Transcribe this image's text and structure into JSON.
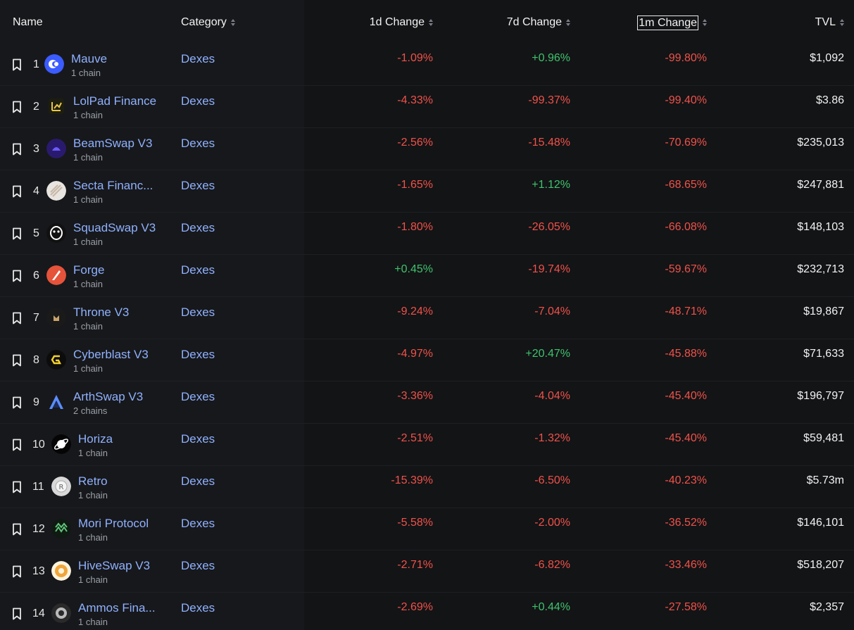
{
  "header": {
    "name": "Name",
    "category": "Category",
    "change_1d": "1d Change",
    "change_7d": "7d Change",
    "change_1m": "1m Change",
    "tvl": "TVL"
  },
  "colors": {
    "negative": "#f0524a",
    "positive": "#3fc36e",
    "link": "#8fb1ff"
  },
  "rows": [
    {
      "rank": "1",
      "name": "Mauve",
      "chains": "1 chain",
      "category": "Dexes",
      "d1": "-1.09%",
      "d7": "+0.96%",
      "m1": "-99.80%",
      "tvl": "$1,092",
      "logo": "mauve-logo-icon"
    },
    {
      "rank": "2",
      "name": "LolPad Finance",
      "chains": "1 chain",
      "category": "Dexes",
      "d1": "-4.33%",
      "d7": "-99.37%",
      "m1": "-99.40%",
      "tvl": "$3.86",
      "logo": "lolpad-logo-icon"
    },
    {
      "rank": "3",
      "name": "BeamSwap V3",
      "chains": "1 chain",
      "category": "Dexes",
      "d1": "-2.56%",
      "d7": "-15.48%",
      "m1": "-70.69%",
      "tvl": "$235,013",
      "logo": "beamswap-logo-icon"
    },
    {
      "rank": "4",
      "name": "Secta Financ...",
      "chains": "1 chain",
      "category": "Dexes",
      "d1": "-1.65%",
      "d7": "+1.12%",
      "m1": "-68.65%",
      "tvl": "$247,881",
      "logo": "secta-logo-icon"
    },
    {
      "rank": "5",
      "name": "SquadSwap V3",
      "chains": "1 chain",
      "category": "Dexes",
      "d1": "-1.80%",
      "d7": "-26.05%",
      "m1": "-66.08%",
      "tvl": "$148,103",
      "logo": "squadswap-logo-icon"
    },
    {
      "rank": "6",
      "name": "Forge",
      "chains": "1 chain",
      "category": "Dexes",
      "d1": "+0.45%",
      "d7": "-19.74%",
      "m1": "-59.67%",
      "tvl": "$232,713",
      "logo": "forge-logo-icon"
    },
    {
      "rank": "7",
      "name": "Throne V3",
      "chains": "1 chain",
      "category": "Dexes",
      "d1": "-9.24%",
      "d7": "-7.04%",
      "m1": "-48.71%",
      "tvl": "$19,867",
      "logo": "throne-logo-icon"
    },
    {
      "rank": "8",
      "name": "Cyberblast V3",
      "chains": "1 chain",
      "category": "Dexes",
      "d1": "-4.97%",
      "d7": "+20.47%",
      "m1": "-45.88%",
      "tvl": "$71,633",
      "logo": "cyberblast-logo-icon"
    },
    {
      "rank": "9",
      "name": "ArthSwap V3",
      "chains": "2 chains",
      "category": "Dexes",
      "d1": "-3.36%",
      "d7": "-4.04%",
      "m1": "-45.40%",
      "tvl": "$196,797",
      "logo": "arthswap-logo-icon"
    },
    {
      "rank": "10",
      "name": "Horiza",
      "chains": "1 chain",
      "category": "Dexes",
      "d1": "-2.51%",
      "d7": "-1.32%",
      "m1": "-45.40%",
      "tvl": "$59,481",
      "logo": "horiza-logo-icon"
    },
    {
      "rank": "11",
      "name": "Retro",
      "chains": "1 chain",
      "category": "Dexes",
      "d1": "-15.39%",
      "d7": "-6.50%",
      "m1": "-40.23%",
      "tvl": "$5.73m",
      "logo": "retro-logo-icon"
    },
    {
      "rank": "12",
      "name": "Mori Protocol",
      "chains": "1 chain",
      "category": "Dexes",
      "d1": "-5.58%",
      "d7": "-2.00%",
      "m1": "-36.52%",
      "tvl": "$146,101",
      "logo": "mori-logo-icon"
    },
    {
      "rank": "13",
      "name": "HiveSwap V3",
      "chains": "1 chain",
      "category": "Dexes",
      "d1": "-2.71%",
      "d7": "-6.82%",
      "m1": "-33.46%",
      "tvl": "$518,207",
      "logo": "hiveswap-logo-icon"
    },
    {
      "rank": "14",
      "name": "Ammos Fina...",
      "chains": "1 chain",
      "category": "Dexes",
      "d1": "-2.69%",
      "d7": "+0.44%",
      "m1": "-27.58%",
      "tvl": "$2,357",
      "logo": "ammos-logo-icon"
    }
  ]
}
